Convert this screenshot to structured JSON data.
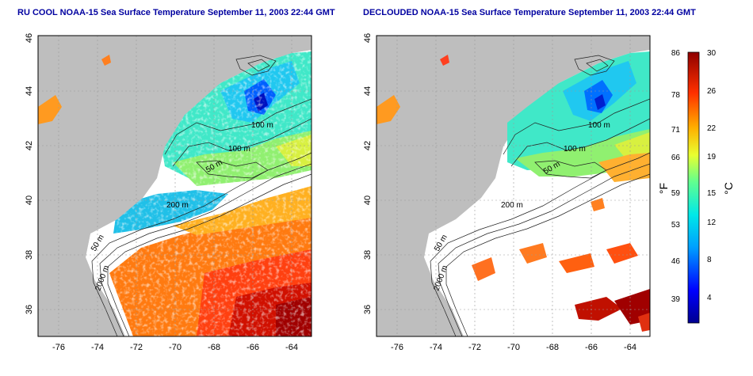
{
  "panels": [
    {
      "title": "RU COOL NOAA-15 Sea Surface Temperature September 11, 2003 22:44 GMT",
      "contour_labels": [
        "100 m",
        "100 m",
        "50 m",
        "200 m",
        "50 m",
        "2000 m"
      ]
    },
    {
      "title": "DECLOUDED NOAA-15 Sea Surface Temperature September 11, 2003 22:44 GMT",
      "contour_labels": [
        "100 m",
        "100 m",
        "50 m",
        "200 m",
        "50 m",
        "2000 m"
      ]
    }
  ],
  "axes": {
    "lon_ticks": [
      "-76",
      "-74",
      "-72",
      "-70",
      "-68",
      "-66",
      "-64"
    ],
    "lat_ticks": [
      "36",
      "38",
      "40",
      "42",
      "44",
      "46"
    ],
    "lon_range": [
      -77,
      -63
    ],
    "lat_range": [
      35,
      46
    ]
  },
  "colorbar": {
    "f_label": "°F",
    "c_label": "°C",
    "f_ticks": [
      "86",
      "78",
      "71",
      "66",
      "59",
      "53",
      "46",
      "39"
    ],
    "c_ticks": [
      "30",
      "26",
      "22",
      "19",
      "15",
      "12",
      "8",
      "4"
    ]
  },
  "colors": {
    "land": "#bebebe",
    "title": "#0000a0",
    "no_data": "#ffffff"
  }
}
